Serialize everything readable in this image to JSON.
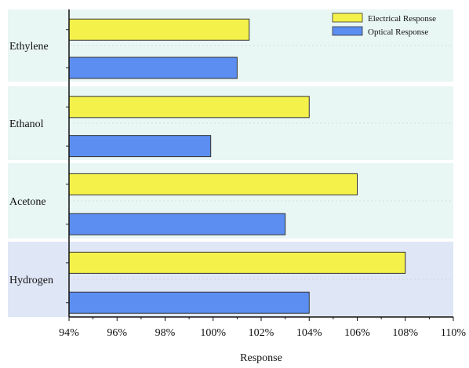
{
  "chart_data": {
    "type": "bar",
    "orientation": "horizontal",
    "title": "",
    "xlabel": "Response",
    "ylabel": "",
    "categories": [
      "Ethylene",
      "Ethanol",
      "Acetone",
      "Hydrogen"
    ],
    "series": [
      {
        "name": "Electrical Response",
        "values": [
          101.5,
          104,
          106,
          108
        ],
        "color": "#f4f24a"
      },
      {
        "name": "Optical Response",
        "values": [
          101,
          99.9,
          103,
          104
        ],
        "color": "#5b8ef0"
      }
    ],
    "xlim": [
      94,
      110
    ],
    "x_ticks": [
      94,
      96,
      98,
      100,
      102,
      104,
      106,
      108,
      110
    ],
    "x_tick_labels": [
      "94%",
      "96%",
      "98%",
      "100%",
      "102%",
      "104%",
      "106%",
      "108%",
      "110%"
    ],
    "legend_position": "top-right",
    "grid": false,
    "category_background_colors": [
      "#e8f6f4",
      "#e8f6f4",
      "#e8f6f4",
      "#dfe6f6"
    ],
    "bar_stroke": "#333333"
  }
}
